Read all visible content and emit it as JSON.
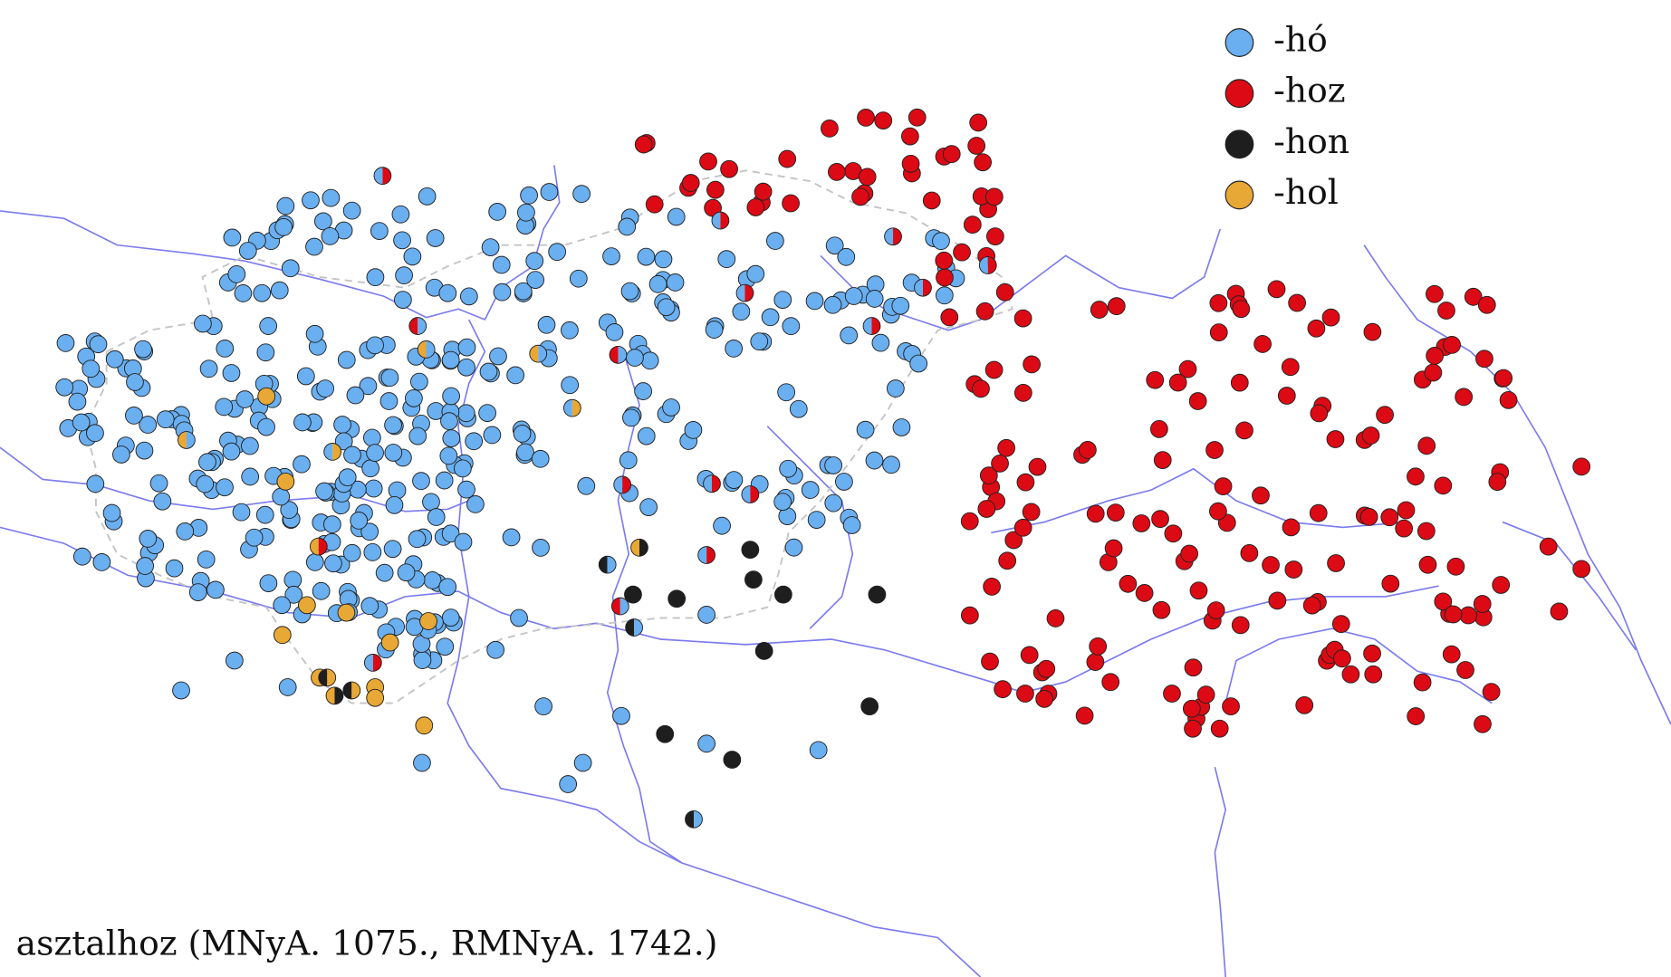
{
  "legend": {
    "items": [
      {
        "label": "-hó",
        "color": "#6aaff0"
      },
      {
        "label": "-hoz",
        "color": "#dc0a14"
      },
      {
        "label": "-hon",
        "color": "#1e1e1e"
      },
      {
        "label": "-hol",
        "color": "#e8a835"
      }
    ]
  },
  "caption": "asztalhoz (MNyA. 1075., RMNyA. 1742.)"
}
